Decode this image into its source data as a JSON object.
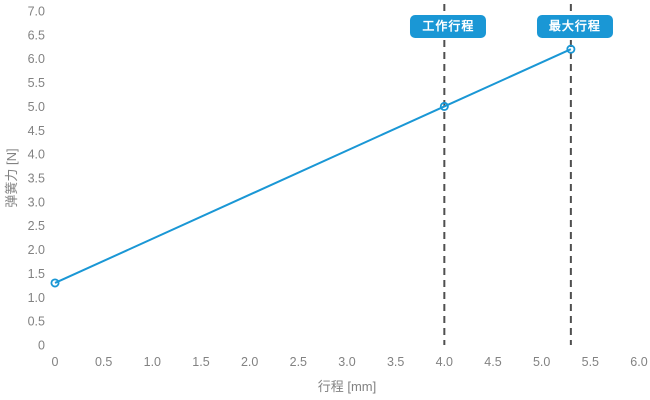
{
  "chart_data": {
    "type": "line",
    "title": "",
    "xlabel": "行程 [mm]",
    "ylabel": "弹簧力 [N]",
    "xlim": [
      0,
      6.0
    ],
    "ylim": [
      0,
      7.0
    ],
    "grid": false,
    "legend": false,
    "x_ticks": [
      "0",
      "0.5",
      "1.0",
      "1.5",
      "2.0",
      "2.5",
      "3.0",
      "3.5",
      "4.0",
      "4.5",
      "5.0",
      "5.5",
      "6.0"
    ],
    "y_ticks": [
      "0",
      "0.5",
      "1.0",
      "1.5",
      "2.0",
      "2.5",
      "3.0",
      "3.5",
      "4.0",
      "4.5",
      "5.0",
      "5.5",
      "6.0",
      "6.5",
      "7.0"
    ],
    "series": [
      {
        "name": "弹簧力",
        "x": [
          0,
          4.0,
          5.3
        ],
        "y": [
          1.3,
          5.0,
          6.2
        ],
        "marker": "open-circle"
      }
    ],
    "annotations": [
      {
        "type": "vline",
        "x": 4.0,
        "label": "工作行程"
      },
      {
        "type": "vline",
        "x": 5.3,
        "label": "最大行程"
      }
    ]
  },
  "colors": {
    "line": "#1a97d5",
    "badge_bg": "#1a97d5",
    "badge_text": "#ffffff",
    "dashed_line": "#4f4f4f",
    "tick_text": "#828282",
    "axis_title_text": "#828282",
    "background": "#ffffff"
  }
}
